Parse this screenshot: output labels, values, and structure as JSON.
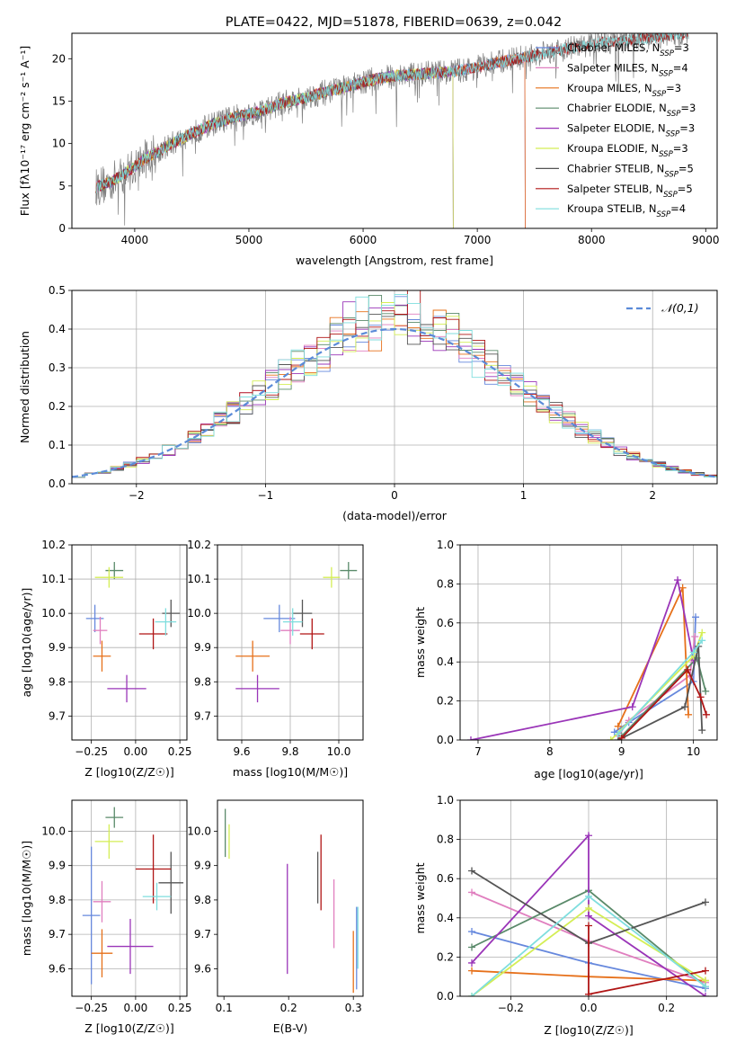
{
  "figure": {
    "title": "PLATE=0422, MJD=51878, FIBERID=0639, z=0.042"
  },
  "palette": {
    "Chabrier MILES": "#6688dd",
    "Salpeter MILES": "#e07fbf",
    "Kroupa MILES": "#e6701a",
    "Chabrier ELODIE": "#5a8a6a",
    "Salpeter ELODIE": "#9a35b8",
    "Kroupa ELODIE": "#d4ee55",
    "Chabrier STELIB": "#555555",
    "Salpeter STELIB": "#b01515",
    "Kroupa STELIB": "#7fdede"
  },
  "chart_data": [
    {
      "id": "spectrum",
      "type": "line",
      "title": "PLATE=0422, MJD=51878, FIBERID=0639, z=0.042",
      "xlabel": "wavelength [Angstrom, rest frame]",
      "ylabel": "Flux [fλ10⁻¹⁷ erg cm⁻² s⁻¹ A⁻¹]",
      "xlim": [
        3450,
        9100
      ],
      "ylim": [
        0,
        23
      ],
      "xticks": [
        4000,
        5000,
        6000,
        7000,
        8000,
        9000
      ],
      "yticks": [
        0,
        5,
        10,
        15,
        20
      ],
      "grid": false,
      "legend_position": "top-right",
      "legend": [
        "Chabrier MILES, NSSP=3",
        "Salpeter MILES, NSSP=4",
        "Kroupa MILES, NSSP=3",
        "Chabrier ELODIE, NSSP=3",
        "Salpeter ELODIE, NSSP=3",
        "Kroupa ELODIE, NSSP=3",
        "Chabrier STELIB, NSSP=5",
        "Salpeter STELIB, NSSP=5",
        "Kroupa STELIB, NSSP=4"
      ],
      "data_trend": {
        "x": [
          3650,
          3800,
          3950,
          4100,
          4300,
          4500,
          4700,
          4900,
          5100,
          5300,
          5500,
          5700,
          5900,
          6100,
          6300,
          6500,
          6700,
          6900,
          7100,
          7300,
          7500,
          7800,
          8100,
          8400,
          8700,
          8850
        ],
        "y": [
          4.8,
          5.5,
          6.8,
          8.3,
          9.8,
          11.2,
          12.4,
          13.2,
          13.8,
          14.8,
          15.4,
          16.2,
          16.8,
          17.6,
          18.0,
          18.2,
          18.4,
          18.7,
          19.3,
          19.9,
          20.4,
          21.2,
          21.9,
          22.3,
          22.8,
          23.0
        ]
      },
      "model_end_x": {
        "Chabrier MILES": 7420,
        "Salpeter MILES": 7420,
        "Kroupa MILES": 7420,
        "Chabrier ELODIE": 6790,
        "Salpeter ELODIE": 6790,
        "Kroupa ELODIE": 6790,
        "Chabrier STELIB": 8850,
        "Salpeter STELIB": 8850,
        "Kroupa STELIB": 8850
      }
    },
    {
      "id": "residuals",
      "type": "line",
      "xlabel": "(data-model)/error",
      "ylabel": "Normed distribution",
      "xlim": [
        -2.5,
        2.5
      ],
      "ylim": [
        0,
        0.5
      ],
      "xticks": [
        -2,
        -1,
        0,
        1,
        2
      ],
      "yticks": [
        0.0,
        0.1,
        0.2,
        0.3,
        0.4,
        0.5
      ],
      "grid": true,
      "legend_position": "top-right",
      "legend": [
        "𝒩(0,1)"
      ],
      "bin_width": 0.1,
      "amplitude": 0.4
    },
    {
      "id": "age-vs-Z",
      "type": "scatter",
      "xlabel": "Z [log10(Z/Z☉)]",
      "ylabel": "age  [log10(age/yr)]",
      "xlim": [
        -0.36,
        0.29
      ],
      "ylim": [
        9.63,
        10.2
      ],
      "xticks": [
        -0.25,
        0.0,
        0.25
      ],
      "yticks": [
        9.7,
        9.8,
        9.9,
        10.0,
        10.1,
        10.2
      ],
      "grid": true,
      "points": [
        {
          "model": "Chabrier MILES",
          "x": -0.23,
          "y": 9.985,
          "xerr": 0.05,
          "yerr": 0.04
        },
        {
          "model": "Salpeter MILES",
          "x": -0.2,
          "y": 9.95,
          "xerr": 0.04,
          "yerr": 0.04
        },
        {
          "model": "Kroupa MILES",
          "x": -0.19,
          "y": 9.875,
          "xerr": 0.05,
          "yerr": 0.045
        },
        {
          "model": "Chabrier ELODIE",
          "x": -0.12,
          "y": 10.125,
          "xerr": 0.05,
          "yerr": 0.025
        },
        {
          "model": "Salpeter ELODIE",
          "x": -0.05,
          "y": 9.78,
          "xerr": 0.11,
          "yerr": 0.04
        },
        {
          "model": "Kroupa ELODIE",
          "x": -0.15,
          "y": 10.105,
          "xerr": 0.08,
          "yerr": 0.03
        },
        {
          "model": "Chabrier STELIB",
          "x": 0.2,
          "y": 10.0,
          "xerr": 0.05,
          "yerr": 0.04
        },
        {
          "model": "Salpeter STELIB",
          "x": 0.1,
          "y": 9.94,
          "xerr": 0.08,
          "yerr": 0.045
        },
        {
          "model": "Kroupa STELIB",
          "x": 0.17,
          "y": 9.975,
          "xerr": 0.06,
          "yerr": 0.04
        }
      ]
    },
    {
      "id": "age-vs-mass",
      "type": "scatter",
      "xlabel": "mass [log10(M/M☉)]",
      "ylabel": "",
      "xlim": [
        9.5,
        10.1
      ],
      "ylim": [
        9.63,
        10.2
      ],
      "xticks": [
        9.6,
        9.8,
        10.0
      ],
      "yticks": [
        9.7,
        9.8,
        9.9,
        10.0,
        10.1,
        10.2
      ],
      "grid": true,
      "points": [
        {
          "model": "Chabrier MILES",
          "x": 9.755,
          "y": 9.985,
          "xerr": 0.065,
          "yerr": 0.04
        },
        {
          "model": "Salpeter MILES",
          "x": 9.8,
          "y": 9.95,
          "xerr": 0.04,
          "yerr": 0.04
        },
        {
          "model": "Kroupa MILES",
          "x": 9.645,
          "y": 9.875,
          "xerr": 0.07,
          "yerr": 0.045
        },
        {
          "model": "Chabrier ELODIE",
          "x": 10.04,
          "y": 10.125,
          "xerr": 0.035,
          "yerr": 0.025
        },
        {
          "model": "Salpeter ELODIE",
          "x": 9.665,
          "y": 9.78,
          "xerr": 0.09,
          "yerr": 0.04
        },
        {
          "model": "Kroupa ELODIE",
          "x": 9.97,
          "y": 10.105,
          "xerr": 0.035,
          "yerr": 0.03
        },
        {
          "model": "Chabrier STELIB",
          "x": 9.85,
          "y": 10.0,
          "xerr": 0.04,
          "yerr": 0.04
        },
        {
          "model": "Salpeter STELIB",
          "x": 9.89,
          "y": 9.94,
          "xerr": 0.05,
          "yerr": 0.045
        },
        {
          "model": "Kroupa STELIB",
          "x": 9.81,
          "y": 9.975,
          "xerr": 0.04,
          "yerr": 0.04
        }
      ]
    },
    {
      "id": "mass-vs-Z",
      "type": "scatter",
      "xlabel": "Z [log10(Z/Z☉)]",
      "ylabel": "mass [log10(M/M☉)]",
      "xlim": [
        -0.36,
        0.29
      ],
      "ylim": [
        9.52,
        10.09
      ],
      "xticks": [
        -0.25,
        0.0,
        0.25
      ],
      "yticks": [
        9.6,
        9.7,
        9.8,
        9.9,
        10.0
      ],
      "grid": true,
      "points": [
        {
          "model": "Chabrier MILES",
          "x": -0.25,
          "y": 9.755,
          "xerr": 0.05,
          "yerr": 0.2
        },
        {
          "model": "Salpeter MILES",
          "x": -0.19,
          "y": 9.795,
          "xerr": 0.05,
          "yerr": 0.06
        },
        {
          "model": "Kroupa MILES",
          "x": -0.19,
          "y": 9.645,
          "xerr": 0.06,
          "yerr": 0.07
        },
        {
          "model": "Chabrier ELODIE",
          "x": -0.12,
          "y": 10.04,
          "xerr": 0.05,
          "yerr": 0.03
        },
        {
          "model": "Salpeter ELODIE",
          "x": -0.03,
          "y": 9.665,
          "xerr": 0.13,
          "yerr": 0.08
        },
        {
          "model": "Kroupa ELODIE",
          "x": -0.15,
          "y": 9.97,
          "xerr": 0.08,
          "yerr": 0.05
        },
        {
          "model": "Chabrier STELIB",
          "x": 0.2,
          "y": 9.85,
          "xerr": 0.07,
          "yerr": 0.09
        },
        {
          "model": "Salpeter STELIB",
          "x": 0.1,
          "y": 9.89,
          "xerr": 0.1,
          "yerr": 0.1
        },
        {
          "model": "Kroupa STELIB",
          "x": 0.12,
          "y": 9.81,
          "xerr": 0.08,
          "yerr": 0.04
        }
      ]
    },
    {
      "id": "mass-vs-ebv",
      "type": "scatter",
      "xlabel": "E(B-V)",
      "ylabel": "",
      "xlim": [
        0.09,
        0.315
      ],
      "ylim": [
        9.52,
        10.09
      ],
      "xticks": [
        0.1,
        0.2,
        0.3
      ],
      "yticks": [
        9.6,
        9.7,
        9.8,
        9.9,
        10.0
      ],
      "grid": false,
      "points": [
        {
          "model": "Chabrier MILES",
          "x": 0.305,
          "y": 9.66,
          "xerr": 0.0,
          "yerr": 0.12
        },
        {
          "model": "Salpeter MILES",
          "x": 0.27,
          "y": 9.76,
          "xerr": 0.0,
          "yerr": 0.1
        },
        {
          "model": "Kroupa MILES",
          "x": 0.3,
          "y": 9.62,
          "xerr": 0.0,
          "yerr": 0.09
        },
        {
          "model": "Chabrier ELODIE",
          "x": 0.102,
          "y": 9.995,
          "xerr": 0.0,
          "yerr": 0.07
        },
        {
          "model": "Salpeter ELODIE",
          "x": 0.198,
          "y": 9.745,
          "xerr": 0.0,
          "yerr": 0.16
        },
        {
          "model": "Kroupa ELODIE",
          "x": 0.108,
          "y": 9.97,
          "xerr": 0.0,
          "yerr": 0.05
        },
        {
          "model": "Chabrier STELIB",
          "x": 0.245,
          "y": 9.865,
          "xerr": 0.0,
          "yerr": 0.075
        },
        {
          "model": "Salpeter STELIB",
          "x": 0.25,
          "y": 9.88,
          "xerr": 0.0,
          "yerr": 0.11
        },
        {
          "model": "Kroupa STELIB",
          "x": 0.307,
          "y": 9.69,
          "xerr": 0.0,
          "yerr": 0.09
        }
      ]
    },
    {
      "id": "weight-vs-age",
      "type": "line",
      "xlabel": "age  [log10(age/yr)]",
      "ylabel": "mass weight",
      "xlim": [
        6.75,
        10.33
      ],
      "ylim": [
        0,
        1.0
      ],
      "xticks": [
        7,
        8,
        9,
        10
      ],
      "yticks": [
        0.0,
        0.2,
        0.4,
        0.6,
        0.8,
        1.0
      ],
      "grid": true,
      "series": [
        {
          "model": "Chabrier MILES",
          "x": [
            8.9,
            9.1,
            10.0,
            10.03
          ],
          "y": [
            0.04,
            0.09,
            0.3,
            0.63
          ]
        },
        {
          "model": "Salpeter MILES",
          "x": [
            8.95,
            9.1,
            9.95,
            10.02
          ],
          "y": [
            0.02,
            0.1,
            0.33,
            0.53
          ]
        },
        {
          "model": "Kroupa MILES",
          "x": [
            8.95,
            9.85,
            9.93
          ],
          "y": [
            0.07,
            0.78,
            0.13
          ]
        },
        {
          "model": "Chabrier ELODIE",
          "x": [
            9.0,
            10.05,
            10.17
          ],
          "y": [
            0.02,
            0.42,
            0.25
          ]
        },
        {
          "model": "Salpeter ELODIE",
          "x": [
            6.9,
            9.15,
            9.78,
            10.0
          ],
          "y": [
            0.0,
            0.17,
            0.82,
            0.41
          ]
        },
        {
          "model": "Kroupa ELODIE",
          "x": [
            8.85,
            10.0,
            10.12
          ],
          "y": [
            0.0,
            0.43,
            0.55
          ]
        },
        {
          "model": "Chabrier STELIB",
          "x": [
            8.95,
            9.88,
            10.07,
            10.12
          ],
          "y": [
            0.0,
            0.17,
            0.48,
            0.05
          ]
        },
        {
          "model": "Salpeter STELIB",
          "x": [
            9.0,
            9.92,
            10.1,
            10.18
          ],
          "y": [
            0.01,
            0.36,
            0.22,
            0.13
          ]
        },
        {
          "model": "Kroupa STELIB",
          "x": [
            8.95,
            10.0,
            10.12
          ],
          "y": [
            0.03,
            0.45,
            0.51
          ]
        }
      ]
    },
    {
      "id": "weight-vs-Z",
      "type": "line",
      "xlabel": "Z [log10(Z/Z☉)]",
      "ylabel": "mass weight",
      "xlim": [
        -0.33,
        0.33
      ],
      "ylim": [
        0,
        1.0
      ],
      "xticks": [
        -0.2,
        0.0,
        0.2
      ],
      "yticks": [
        0.0,
        0.2,
        0.4,
        0.6,
        0.8,
        1.0
      ],
      "grid": true,
      "series": [
        {
          "model": "Chabrier MILES",
          "x": [
            -0.3,
            0.0,
            0.3
          ],
          "y": [
            0.33,
            0.17,
            0.04
          ]
        },
        {
          "model": "Salpeter MILES",
          "x": [
            -0.3,
            0.0,
            0.3
          ],
          "y": [
            0.53,
            0.28,
            0.07
          ]
        },
        {
          "model": "Kroupa MILES",
          "x": [
            -0.3,
            0.0,
            0.3
          ],
          "y": [
            0.13,
            0.1,
            0.08
          ]
        },
        {
          "model": "Chabrier ELODIE",
          "x": [
            -0.3,
            0.0,
            0.3
          ],
          "y": [
            0.25,
            0.54,
            0.05
          ]
        },
        {
          "model": "Salpeter ELODIE",
          "x": [
            -0.3,
            0.0,
            0.0,
            0.3
          ],
          "y": [
            0.17,
            0.82,
            0.41,
            0.0
          ]
        },
        {
          "model": "Kroupa ELODIE",
          "x": [
            -0.3,
            0.0,
            0.3
          ],
          "y": [
            0.0,
            0.45,
            0.08
          ]
        },
        {
          "model": "Chabrier STELIB",
          "x": [
            -0.3,
            0.0,
            0.3
          ],
          "y": [
            0.64,
            0.27,
            0.48
          ]
        },
        {
          "model": "Salpeter STELIB",
          "x": [
            0.0,
            0.0,
            0.3
          ],
          "y": [
            0.36,
            0.01,
            0.13
          ]
        },
        {
          "model": "Kroupa STELIB",
          "x": [
            -0.3,
            0.0,
            0.3
          ],
          "y": [
            0.0,
            0.51,
            0.05
          ]
        }
      ]
    }
  ]
}
